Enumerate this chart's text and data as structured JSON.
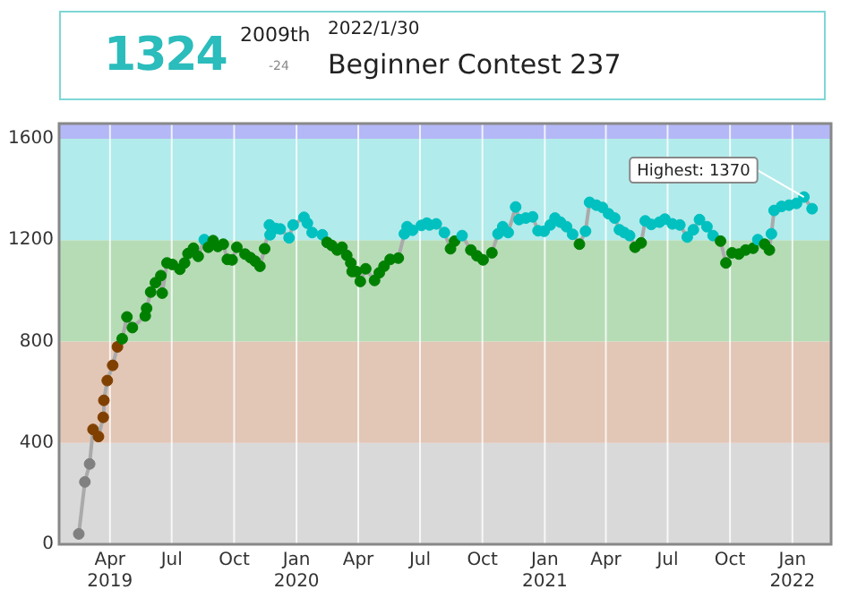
{
  "chart_data": {
    "type": "line",
    "annotations": [
      "1324",
      "2009th",
      "-24",
      "2022/1/30",
      "Beginner Contest 237",
      {
        "text": "Highest: 1370",
        "x": "2022-01-18",
        "y": 1370
      }
    ],
    "x": [
      "2019-02-14",
      "2019-02-23",
      "2019-03-02",
      "2019-03-07",
      "2019-03-15",
      "2019-03-22",
      "2019-03-23",
      "2019-03-28",
      "2019-04-05",
      "2019-04-12",
      "2019-04-19",
      "2019-04-26",
      "2019-05-04",
      "2019-05-23",
      "2019-05-25",
      "2019-05-31",
      "2019-06-07",
      "2019-06-15",
      "2019-06-17",
      "2019-06-24",
      "2019-07-02",
      "2019-07-13",
      "2019-07-20",
      "2019-07-25",
      "2019-08-02",
      "2019-08-09",
      "2019-08-18",
      "2019-08-24",
      "2019-08-31",
      "2019-09-07",
      "2019-09-15",
      "2019-09-21",
      "2019-09-28",
      "2019-10-05",
      "2019-10-17",
      "2019-10-25",
      "2019-11-01",
      "2019-11-08",
      "2019-11-15",
      "2019-11-22",
      "2019-11-23",
      "2019-12-01",
      "2019-12-08",
      "2019-12-21",
      "2019-12-27",
      "2020-01-12",
      "2020-01-17",
      "2020-01-24",
      "2020-02-08",
      "2020-02-15",
      "2020-02-22",
      "2020-03-01",
      "2020-03-08",
      "2020-03-15",
      "2020-03-21",
      "2020-03-23",
      "2020-03-29",
      "2020-04-04",
      "2020-04-12",
      "2020-04-25",
      "2020-05-02",
      "2020-05-09",
      "2020-05-18",
      "2020-05-30",
      "2020-06-08",
      "2020-06-12",
      "2020-06-20",
      "2020-07-03",
      "2020-07-11",
      "2020-07-15",
      "2020-07-25",
      "2020-08-06",
      "2020-08-15",
      "2020-08-21",
      "2020-09-01",
      "2020-09-14",
      "2020-09-23",
      "2020-10-02",
      "2020-10-15",
      "2020-10-24",
      "2020-10-31",
      "2020-11-08",
      "2020-11-19",
      "2020-11-24",
      "2020-12-04",
      "2020-12-14",
      "2020-12-22",
      "2020-12-31",
      "2021-01-09",
      "2021-01-16",
      "2021-01-24",
      "2021-02-02",
      "2021-02-11",
      "2021-02-21",
      "2021-03-02",
      "2021-03-08",
      "2021-03-18",
      "2021-03-27",
      "2021-04-05",
      "2021-04-14",
      "2021-04-21",
      "2021-04-28",
      "2021-05-06",
      "2021-05-14",
      "2021-05-23",
      "2021-05-29",
      "2021-06-07",
      "2021-06-19",
      "2021-06-27",
      "2021-07-08",
      "2021-07-19",
      "2021-07-30",
      "2021-08-08",
      "2021-08-17",
      "2021-08-28",
      "2021-09-06",
      "2021-09-17",
      "2021-09-25",
      "2021-10-04",
      "2021-10-14",
      "2021-10-24",
      "2021-11-04",
      "2021-11-11",
      "2021-11-21",
      "2021-11-28",
      "2021-12-01",
      "2021-12-05",
      "2021-12-16",
      "2021-12-27",
      "2022-01-07",
      "2022-01-18",
      "2022-01-30"
    ],
    "series": [
      {
        "color": "#aaaaaa",
        "values": [
          41,
          246,
          317,
          453,
          425,
          501,
          568,
          646,
          706,
          779,
          811,
          897,
          855,
          901,
          931,
          995,
          1032,
          1060,
          991,
          1110,
          1104,
          1085,
          1110,
          1147,
          1168,
          1136,
          1202,
          1172,
          1198,
          1175,
          1184,
          1124,
          1122,
          1172,
          1145,
          1131,
          1117,
          1097,
          1166,
          1260,
          1221,
          1246,
          1244,
          1209,
          1260,
          1290,
          1267,
          1230,
          1221,
          1191,
          1179,
          1161,
          1172,
          1140,
          1110,
          1076,
          1076,
          1037,
          1087,
          1041,
          1071,
          1097,
          1124,
          1129,
          1225,
          1253,
          1239,
          1258,
          1267,
          1260,
          1264,
          1230,
          1166,
          1196,
          1218,
          1161,
          1138,
          1122,
          1150,
          1225,
          1253,
          1230,
          1331,
          1281,
          1287,
          1292,
          1237,
          1235,
          1260,
          1287,
          1271,
          1253,
          1223,
          1184,
          1235,
          1349,
          1338,
          1329,
          1304,
          1287,
          1241,
          1230,
          1218,
          1172,
          1189,
          1276,
          1262,
          1271,
          1283,
          1264,
          1260,
          1212,
          1241,
          1281,
          1253,
          1218,
          1196,
          1110,
          1150,
          1145,
          1161,
          1168,
          1202,
          1184,
          1161,
          1225,
          1317,
          1333,
          1338,
          1345,
          1370,
          1324
        ],
        "colors": [
          "#808080",
          "#808080",
          "#808080",
          "#804000",
          "#804000",
          "#804000",
          "#804000",
          "#804000",
          "#804000",
          "#804000",
          "#008000",
          "#008000",
          "#008000",
          "#008000",
          "#008000",
          "#008000",
          "#008000",
          "#008000",
          "#008000",
          "#008000",
          "#008000",
          "#008000",
          "#008000",
          "#008000",
          "#008000",
          "#008000",
          "#00c0c0",
          "#008000",
          "#008000",
          "#008000",
          "#008000",
          "#008000",
          "#008000",
          "#008000",
          "#008000",
          "#008000",
          "#008000",
          "#008000",
          "#008000",
          "#00c0c0",
          "#00c0c0",
          "#00c0c0",
          "#00c0c0",
          "#00c0c0",
          "#00c0c0",
          "#00c0c0",
          "#00c0c0",
          "#00c0c0",
          "#00c0c0",
          "#008000",
          "#008000",
          "#008000",
          "#008000",
          "#008000",
          "#008000",
          "#008000",
          "#008000",
          "#008000",
          "#008000",
          "#008000",
          "#008000",
          "#008000",
          "#008000",
          "#008000",
          "#00c0c0",
          "#00c0c0",
          "#00c0c0",
          "#00c0c0",
          "#00c0c0",
          "#00c0c0",
          "#00c0c0",
          "#00c0c0",
          "#008000",
          "#008000",
          "#00c0c0",
          "#008000",
          "#008000",
          "#008000",
          "#008000",
          "#00c0c0",
          "#00c0c0",
          "#00c0c0",
          "#00c0c0",
          "#00c0c0",
          "#00c0c0",
          "#00c0c0",
          "#00c0c0",
          "#00c0c0",
          "#00c0c0",
          "#00c0c0",
          "#00c0c0",
          "#00c0c0",
          "#00c0c0",
          "#008000",
          "#00c0c0",
          "#00c0c0",
          "#00c0c0",
          "#00c0c0",
          "#00c0c0",
          "#00c0c0",
          "#00c0c0",
          "#00c0c0",
          "#00c0c0",
          "#008000",
          "#008000",
          "#00c0c0",
          "#00c0c0",
          "#00c0c0",
          "#00c0c0",
          "#00c0c0",
          "#00c0c0",
          "#00c0c0",
          "#00c0c0",
          "#00c0c0",
          "#00c0c0",
          "#00c0c0",
          "#008000",
          "#008000",
          "#008000",
          "#008000",
          "#008000",
          "#008000",
          "#00c0c0",
          "#008000",
          "#008000",
          "#00c0c0",
          "#00c0c0",
          "#00c0c0",
          "#00c0c0",
          "#00c0c0",
          "#00c0c0",
          "#00c0c0"
        ]
      }
    ],
    "xlim": [
      "2019-01-16",
      "2022-02-27"
    ],
    "xticks": [
      {
        "value": "2019-04",
        "label": "Apr 2019"
      },
      {
        "value": "2019-07",
        "label": "Jul"
      },
      {
        "value": "2019-10",
        "label": "Oct"
      },
      {
        "value": "2020-01",
        "label": "Jan 2020"
      },
      {
        "value": "2020-04",
        "label": "Apr"
      },
      {
        "value": "2020-07",
        "label": "Jul"
      },
      {
        "value": "2020-10",
        "label": "Oct"
      },
      {
        "value": "2021-01",
        "label": "Jan 2021"
      },
      {
        "value": "2021-04",
        "label": "Apr"
      },
      {
        "value": "2021-07",
        "label": "Jul"
      },
      {
        "value": "2021-10",
        "label": "Oct"
      },
      {
        "value": "2022-01",
        "label": "Jan 2022"
      }
    ],
    "ylim": [
      0,
      1660
    ],
    "yticks": [
      0,
      400,
      800,
      1200,
      1600
    ],
    "bands": [
      {
        "axis": "y",
        "from": 0,
        "to": 400,
        "color": "#d9d9d9"
      },
      {
        "axis": "y",
        "from": 400,
        "to": 800,
        "color": "#e2c6b6"
      },
      {
        "axis": "y",
        "from": 800,
        "to": 1200,
        "color": "#b6dcb6"
      },
      {
        "axis": "y",
        "from": 1200,
        "to": 1600,
        "color": "#b2ebeb"
      },
      {
        "axis": "y",
        "from": 1600,
        "to": 1660,
        "color": "#b4b8f6"
      }
    ],
    "grid": "x",
    "marker": "circle",
    "legend": false
  }
}
